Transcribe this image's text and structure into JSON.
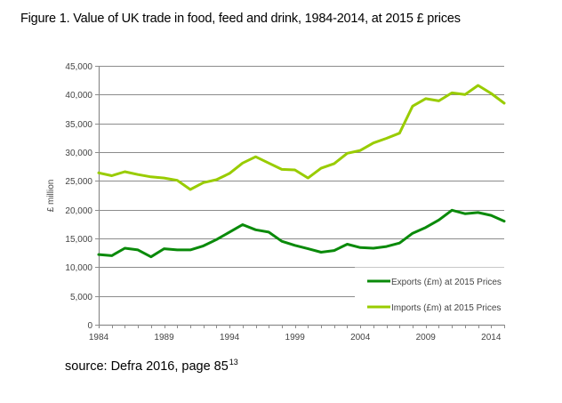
{
  "figure": {
    "title": "Figure 1. Value of UK trade in food, feed and drink, 1984-2014, at 2015 £ prices",
    "source_text": "source: Defra 2016, page 85",
    "source_footnote": "13"
  },
  "chart_data": {
    "type": "line",
    "title": "Figure 1. Value of UK trade in food, feed and drink, 1984-2014, at 2015 £ prices",
    "xlabel": "",
    "ylabel": "£ million",
    "x": [
      1984,
      1985,
      1986,
      1987,
      1988,
      1989,
      1990,
      1991,
      1992,
      1993,
      1994,
      1995,
      1996,
      1997,
      1998,
      1999,
      2000,
      2001,
      2002,
      2003,
      2004,
      2005,
      2006,
      2007,
      2008,
      2009,
      2010,
      2011,
      2012,
      2013,
      2014,
      2015
    ],
    "xlim": [
      1984,
      2015
    ],
    "xticks": [
      1984,
      1985,
      1986,
      1987,
      1988,
      1989,
      1990,
      1991,
      1992,
      1993,
      1994,
      1995,
      1996,
      1997,
      1998,
      1999,
      2000,
      2001,
      2002,
      2003,
      2004,
      2005,
      2006,
      2007,
      2008,
      2009,
      2010,
      2011,
      2012,
      2013,
      2014,
      2015
    ],
    "xtick_labels": [
      "1984",
      "1989",
      "1994",
      "1999",
      "2004",
      "2009",
      "2014"
    ],
    "xtick_label_years": [
      1984,
      1989,
      1994,
      1999,
      2004,
      2009,
      2014
    ],
    "ylim": [
      0,
      45000
    ],
    "yticks": [
      0,
      5000,
      10000,
      15000,
      20000,
      25000,
      30000,
      35000,
      40000,
      45000
    ],
    "ytick_labels": [
      "0",
      "5,000",
      "10,000",
      "15,000",
      "20,000",
      "25,000",
      "30,000",
      "35,000",
      "40,000",
      "45,000"
    ],
    "grid": true,
    "legend_position": "bottom-right",
    "series": [
      {
        "name": "Exports (£m) at 2015 Prices",
        "color": "#0a8a0a",
        "values": [
          12200,
          12000,
          13300,
          13000,
          11800,
          13200,
          13000,
          13000,
          13700,
          14800,
          16100,
          17400,
          16500,
          16100,
          14500,
          13800,
          13200,
          12600,
          12900,
          14000,
          13400,
          13300,
          13600,
          14200,
          15900,
          16900,
          18200,
          19900,
          19300,
          19500,
          19000,
          18000
        ]
      },
      {
        "name": "Imports (£m) at 2015 Prices",
        "color": "#99cc00",
        "values": [
          26400,
          25900,
          26600,
          26100,
          25700,
          25500,
          25100,
          23500,
          24700,
          25200,
          26300,
          28100,
          29200,
          28100,
          27000,
          26900,
          25500,
          27200,
          28000,
          29800,
          30300,
          31600,
          32400,
          33300,
          38000,
          39300,
          38900,
          40300,
          40000,
          41600,
          40200,
          38500
        ]
      }
    ]
  }
}
